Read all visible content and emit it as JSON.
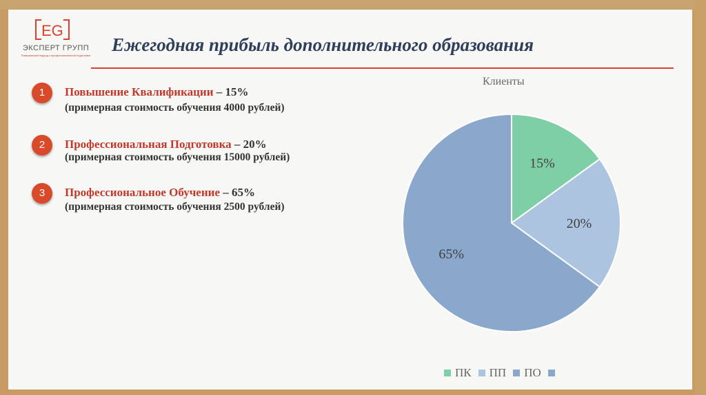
{
  "logo": {
    "mark": "EG",
    "name": "ЭКСПЕРТ ГРУПП",
    "tagline": "Повышенный подход к профессиональной подготовке"
  },
  "title": "Ежегодная прибыль дополнительного образования",
  "items": [
    {
      "number": "1",
      "name": "Повышение Квалификации",
      "share": " – 15%",
      "cost": "(примерная стоимость обучения 4000 рублей)"
    },
    {
      "number": "2",
      "name": "Профессиональная Подготовка",
      "share": " – 20%",
      "cost": "(примерная стоимость обучения 15000 рублей)"
    },
    {
      "number": "3",
      "name": "Профессиональное Обучение",
      "share": " – 65%",
      "cost": "(примерная стоимость обучения 2500 рублей)"
    }
  ],
  "colors": {
    "accent": "#d9412b",
    "title": "#2f3f59",
    "pk": "#7fcfa6",
    "pp": "#adc4e0",
    "po": "#89a8cc"
  },
  "chart_data": {
    "type": "pie",
    "title": "Клиенты",
    "categories": [
      "ПК",
      "ПП",
      "ПО",
      ""
    ],
    "values": [
      15,
      20,
      65,
      0
    ],
    "labels": [
      "15%",
      "20%",
      "65%",
      ""
    ],
    "colors": [
      "#7fcfa6",
      "#adc4e0",
      "#89a8cc",
      "#89a8cc"
    ],
    "legend_position": "bottom"
  }
}
